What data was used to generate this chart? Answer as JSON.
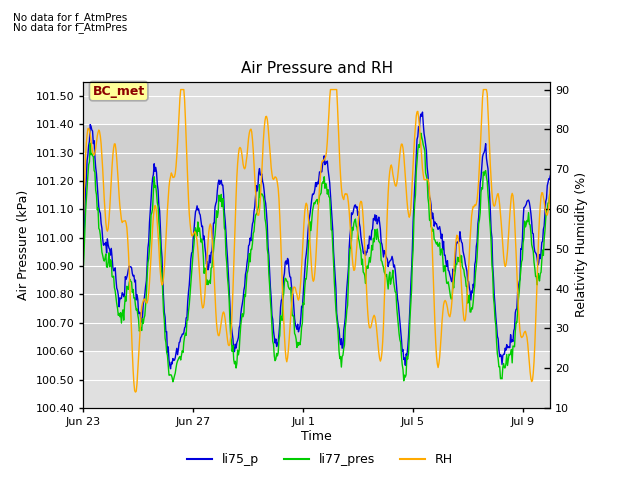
{
  "title": "Air Pressure and RH",
  "xlabel": "Time",
  "ylabel_left": "Air Pressure (kPa)",
  "ylabel_right": "Relativity Humidity (%)",
  "annotation_line1": "No data for f_AtmPres",
  "annotation_line2": "No data for f_AtmPres",
  "station_label": "BC_met",
  "ylim_left": [
    100.4,
    101.55
  ],
  "ylim_right": [
    10,
    92
  ],
  "yticks_left": [
    100.4,
    100.5,
    100.6,
    100.7,
    100.8,
    100.9,
    101.0,
    101.1,
    101.2,
    101.3,
    101.4,
    101.5
  ],
  "yticks_right": [
    10,
    20,
    30,
    40,
    50,
    60,
    70,
    80,
    90
  ],
  "xtick_positions": [
    0,
    4,
    8,
    12,
    16
  ],
  "xtick_labels": [
    "Jun 23",
    "Jun 27",
    "Jul 1",
    "Jul 5",
    "Jul 9"
  ],
  "xlim": [
    0,
    17
  ],
  "color_li75": "#0000dd",
  "color_li77": "#00cc00",
  "color_rh": "#ffaa00",
  "figure_facecolor": "#ffffff",
  "axes_facecolor": "#e0e0e0",
  "band_facecolor": "#d0d0d0",
  "band_ymin": 100.6,
  "band_ymax": 101.4,
  "grid_color": "#ffffff",
  "legend_entries": [
    "li75_p",
    "li77_pres",
    "RH"
  ],
  "n_points": 600,
  "seed": 42
}
